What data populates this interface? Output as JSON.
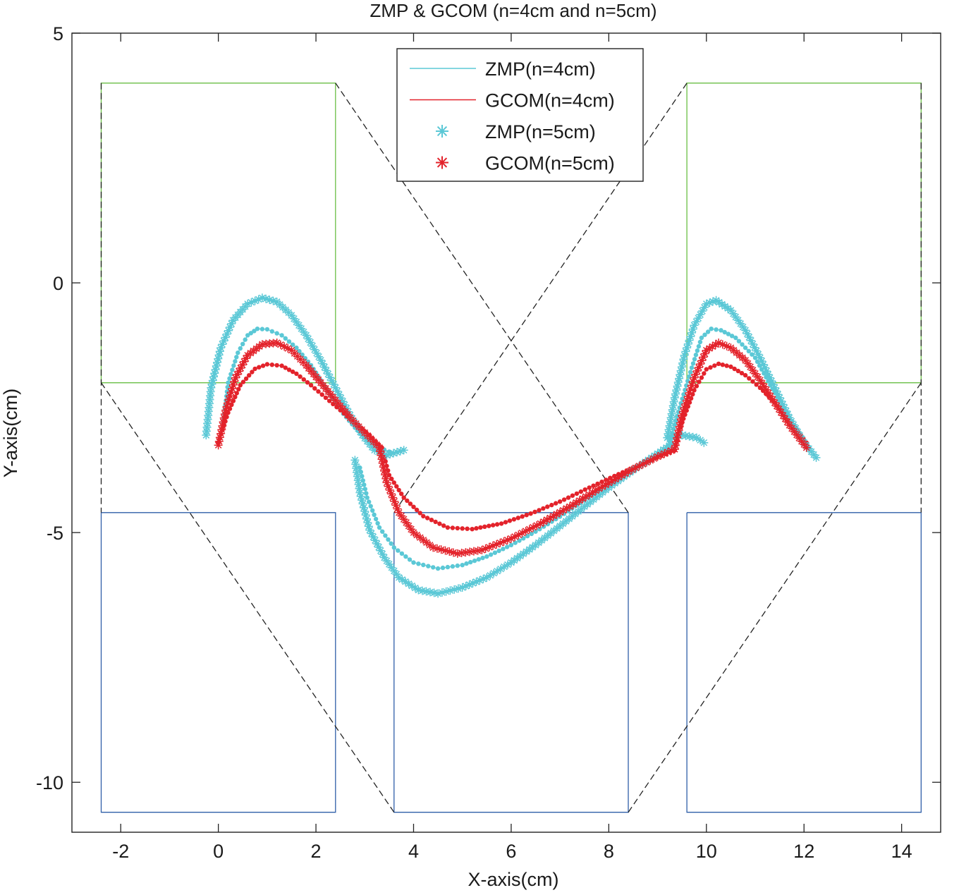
{
  "chart_data": {
    "type": "line",
    "title": "ZMP & GCOM (n=4cm and n=5cm)",
    "xlabel": "X-axis(cm)",
    "ylabel": "Y-axis(cm)",
    "xlim": [
      -3.0,
      14.8
    ],
    "ylim": [
      -11.0,
      5.0
    ],
    "xticks": [
      -2,
      0,
      2,
      4,
      6,
      8,
      10,
      12,
      14
    ],
    "yticks": [
      5,
      0,
      -5,
      -10
    ],
    "grid": false,
    "legend_position": "top-center",
    "colors": {
      "zmp": "#5bc8d6",
      "gcom": "#e3232b",
      "support_top": "#6abf45",
      "support_bottom": "#2f5fa8",
      "boundary": "#222222",
      "axes": "#222222"
    },
    "series": [
      {
        "name": "ZMP(n=4cm)",
        "marker": "dot",
        "color": "#5bc8d6",
        "segments": [
          [
            [
              0.1,
              -2.8
            ],
            [
              0.2,
              -2.0
            ],
            [
              0.4,
              -1.4
            ],
            [
              0.6,
              -1.05
            ],
            [
              0.8,
              -0.92
            ],
            [
              1.0,
              -0.93
            ],
            [
              1.3,
              -1.05
            ],
            [
              1.6,
              -1.3
            ],
            [
              1.9,
              -1.65
            ],
            [
              2.2,
              -2.1
            ],
            [
              2.5,
              -2.55
            ],
            [
              2.8,
              -2.9
            ],
            [
              3.05,
              -3.15
            ],
            [
              3.3,
              -3.3
            ],
            [
              3.5,
              -3.38
            ]
          ],
          [
            [
              2.9,
              -3.7
            ],
            [
              3.05,
              -4.3
            ],
            [
              3.3,
              -4.9
            ],
            [
              3.6,
              -5.3
            ],
            [
              4.0,
              -5.6
            ],
            [
              4.5,
              -5.72
            ],
            [
              5.0,
              -5.65
            ],
            [
              5.5,
              -5.48
            ],
            [
              6.0,
              -5.25
            ],
            [
              6.5,
              -4.98
            ],
            [
              7.0,
              -4.68
            ],
            [
              7.5,
              -4.35
            ],
            [
              8.0,
              -4.02
            ],
            [
              8.5,
              -3.72
            ],
            [
              9.0,
              -3.45
            ],
            [
              9.2,
              -3.35
            ]
          ],
          [
            [
              9.2,
              -3.35
            ],
            [
              9.45,
              -2.5
            ],
            [
              9.7,
              -1.7
            ],
            [
              9.9,
              -1.1
            ],
            [
              10.1,
              -0.92
            ],
            [
              10.3,
              -0.95
            ],
            [
              10.6,
              -1.1
            ],
            [
              11.0,
              -1.5
            ],
            [
              11.4,
              -2.2
            ],
            [
              11.8,
              -2.85
            ],
            [
              12.1,
              -3.3
            ]
          ]
        ]
      },
      {
        "name": "GCOM(n=4cm)",
        "marker": "dot",
        "color": "#e3232b",
        "segments": [
          [
            [
              0.0,
              -3.2
            ],
            [
              0.2,
              -2.6
            ],
            [
              0.45,
              -2.05
            ],
            [
              0.75,
              -1.72
            ],
            [
              1.0,
              -1.63
            ],
            [
              1.3,
              -1.66
            ],
            [
              1.6,
              -1.82
            ],
            [
              1.9,
              -2.05
            ],
            [
              2.2,
              -2.3
            ],
            [
              2.5,
              -2.55
            ],
            [
              2.8,
              -2.8
            ],
            [
              3.1,
              -3.05
            ],
            [
              3.35,
              -3.3
            ]
          ],
          [
            [
              3.35,
              -3.3
            ],
            [
              3.5,
              -3.85
            ],
            [
              3.8,
              -4.3
            ],
            [
              4.2,
              -4.67
            ],
            [
              4.7,
              -4.9
            ],
            [
              5.2,
              -4.93
            ],
            [
              5.8,
              -4.82
            ],
            [
              6.4,
              -4.62
            ],
            [
              7.0,
              -4.38
            ],
            [
              7.6,
              -4.1
            ],
            [
              8.2,
              -3.83
            ],
            [
              8.8,
              -3.58
            ],
            [
              9.35,
              -3.35
            ]
          ],
          [
            [
              9.35,
              -3.35
            ],
            [
              9.5,
              -2.8
            ],
            [
              9.75,
              -2.15
            ],
            [
              10.0,
              -1.73
            ],
            [
              10.25,
              -1.62
            ],
            [
              10.5,
              -1.68
            ],
            [
              10.8,
              -1.85
            ],
            [
              11.1,
              -2.1
            ],
            [
              11.4,
              -2.4
            ],
            [
              11.7,
              -2.75
            ],
            [
              12.05,
              -3.2
            ]
          ]
        ]
      },
      {
        "name": "ZMP(n=5cm)",
        "marker": "star",
        "color": "#5bc8d6",
        "segments": [
          [
            [
              -0.25,
              -3.05
            ],
            [
              -0.15,
              -2.1
            ],
            [
              0.05,
              -1.3
            ],
            [
              0.3,
              -0.75
            ],
            [
              0.6,
              -0.42
            ],
            [
              0.9,
              -0.3
            ],
            [
              1.2,
              -0.38
            ],
            [
              1.5,
              -0.65
            ],
            [
              1.8,
              -1.05
            ],
            [
              2.1,
              -1.55
            ],
            [
              2.4,
              -2.1
            ],
            [
              2.7,
              -2.65
            ],
            [
              2.95,
              -3.05
            ],
            [
              3.2,
              -3.35
            ],
            [
              3.45,
              -3.45
            ],
            [
              3.8,
              -3.35
            ]
          ],
          [
            [
              2.8,
              -3.55
            ],
            [
              2.9,
              -4.2
            ],
            [
              3.1,
              -4.95
            ],
            [
              3.4,
              -5.5
            ],
            [
              3.7,
              -5.9
            ],
            [
              4.1,
              -6.15
            ],
            [
              4.5,
              -6.22
            ],
            [
              5.0,
              -6.1
            ],
            [
              5.5,
              -5.9
            ],
            [
              6.0,
              -5.6
            ],
            [
              6.5,
              -5.25
            ],
            [
              7.0,
              -4.87
            ],
            [
              7.5,
              -4.48
            ],
            [
              8.0,
              -4.1
            ],
            [
              8.5,
              -3.75
            ],
            [
              9.0,
              -3.42
            ],
            [
              9.3,
              -3.22
            ]
          ],
          [
            [
              9.2,
              -3.1
            ],
            [
              9.35,
              -2.3
            ],
            [
              9.55,
              -1.45
            ],
            [
              9.75,
              -0.85
            ],
            [
              10.0,
              -0.42
            ],
            [
              10.2,
              -0.35
            ],
            [
              10.5,
              -0.55
            ],
            [
              10.8,
              -0.95
            ],
            [
              11.1,
              -1.5
            ],
            [
              11.4,
              -2.1
            ],
            [
              11.7,
              -2.7
            ],
            [
              12.0,
              -3.2
            ],
            [
              12.25,
              -3.5
            ]
          ],
          [
            [
              9.2,
              -3.1
            ],
            [
              9.5,
              -3.05
            ],
            [
              9.8,
              -3.1
            ],
            [
              9.95,
              -3.2
            ]
          ]
        ]
      },
      {
        "name": "GCOM(n=5cm)",
        "marker": "star",
        "color": "#e3232b",
        "segments": [
          [
            [
              0.0,
              -3.25
            ],
            [
              0.15,
              -2.55
            ],
            [
              0.35,
              -1.9
            ],
            [
              0.6,
              -1.45
            ],
            [
              0.9,
              -1.23
            ],
            [
              1.2,
              -1.2
            ],
            [
              1.5,
              -1.35
            ],
            [
              1.8,
              -1.65
            ],
            [
              2.1,
              -2.0
            ],
            [
              2.4,
              -2.35
            ],
            [
              2.7,
              -2.7
            ],
            [
              3.0,
              -3.0
            ],
            [
              3.3,
              -3.3
            ]
          ],
          [
            [
              3.3,
              -3.3
            ],
            [
              3.45,
              -4.0
            ],
            [
              3.7,
              -4.6
            ],
            [
              4.0,
              -5.0
            ],
            [
              4.4,
              -5.3
            ],
            [
              4.9,
              -5.42
            ],
            [
              5.4,
              -5.35
            ],
            [
              6.0,
              -5.12
            ],
            [
              6.6,
              -4.82
            ],
            [
              7.2,
              -4.48
            ],
            [
              7.8,
              -4.12
            ],
            [
              8.4,
              -3.78
            ],
            [
              9.0,
              -3.48
            ],
            [
              9.35,
              -3.33
            ]
          ],
          [
            [
              9.35,
              -3.33
            ],
            [
              9.5,
              -2.65
            ],
            [
              9.75,
              -1.9
            ],
            [
              10.0,
              -1.35
            ],
            [
              10.25,
              -1.2
            ],
            [
              10.5,
              -1.3
            ],
            [
              10.8,
              -1.55
            ],
            [
              11.1,
              -1.95
            ],
            [
              11.4,
              -2.4
            ],
            [
              11.7,
              -2.85
            ],
            [
              12.05,
              -3.3
            ]
          ]
        ]
      }
    ],
    "support_polygons": {
      "top": [
        [
          [
            -2.4,
            -2.0
          ],
          [
            -2.4,
            4.0
          ],
          [
            2.4,
            4.0
          ],
          [
            2.4,
            -2.0
          ],
          [
            -2.4,
            -2.0
          ]
        ],
        [
          [
            9.6,
            -2.0
          ],
          [
            9.6,
            4.0
          ],
          [
            14.4,
            4.0
          ],
          [
            14.4,
            -2.0
          ],
          [
            9.6,
            -2.0
          ]
        ]
      ],
      "bottom": [
        [
          [
            -2.4,
            -4.6
          ],
          [
            -2.4,
            -10.6
          ],
          [
            2.4,
            -10.6
          ],
          [
            2.4,
            -4.6
          ],
          [
            -2.4,
            -4.6
          ]
        ],
        [
          [
            3.6,
            -4.6
          ],
          [
            3.6,
            -10.6
          ],
          [
            8.4,
            -10.6
          ],
          [
            8.4,
            -4.6
          ],
          [
            3.6,
            -4.6
          ]
        ],
        [
          [
            9.6,
            -4.6
          ],
          [
            9.6,
            -10.6
          ],
          [
            14.4,
            -10.6
          ],
          [
            14.4,
            -4.6
          ],
          [
            9.6,
            -4.6
          ]
        ]
      ],
      "boundary_lines": [
        [
          [
            -2.4,
            4.0
          ],
          [
            -2.4,
            -4.6
          ]
        ],
        [
          [
            -2.4,
            -2.0
          ],
          [
            3.6,
            -10.6
          ]
        ],
        [
          [
            2.4,
            4.0
          ],
          [
            8.4,
            -4.6
          ]
        ],
        [
          [
            3.6,
            -4.6
          ],
          [
            9.6,
            4.0
          ]
        ],
        [
          [
            8.4,
            -10.6
          ],
          [
            14.4,
            -2.0
          ]
        ],
        [
          [
            14.4,
            4.0
          ],
          [
            14.4,
            -4.6
          ]
        ]
      ]
    }
  }
}
